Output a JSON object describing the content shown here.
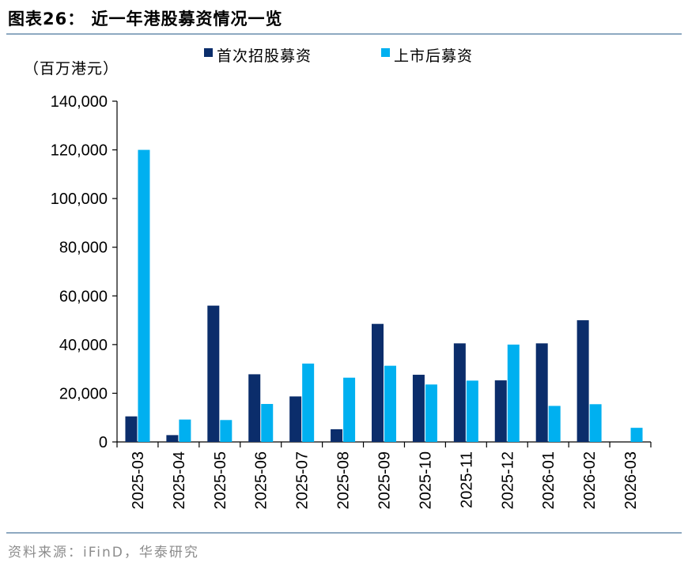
{
  "figure": {
    "title": "图表26： 近一年港股募资情况一览",
    "source": "资料来源：iFinD，华泰研究"
  },
  "chart_data": {
    "type": "bar",
    "unit_label": "（百万港元）",
    "categories": [
      "2025-03",
      "2025-04",
      "2025-05",
      "2025-06",
      "2025-07",
      "2025-08",
      "2025-09",
      "2025-10",
      "2025-11",
      "2025-12",
      "2026-01",
      "2026-02",
      "2026-03"
    ],
    "series": [
      {
        "name": "首次招股募资",
        "color": "#0b2d6b",
        "values": [
          10500,
          2800,
          56000,
          27800,
          18700,
          5200,
          48500,
          27600,
          40500,
          25300,
          40500,
          50000,
          0
        ]
      },
      {
        "name": "上市后募资",
        "color": "#00b0f0",
        "values": [
          120000,
          9200,
          9000,
          15600,
          32200,
          26400,
          31300,
          23600,
          25200,
          40000,
          14800,
          15500,
          5800
        ]
      }
    ],
    "ylim": [
      0,
      140000
    ],
    "yticks": [
      0,
      20000,
      40000,
      60000,
      80000,
      100000,
      120000,
      140000
    ],
    "ytick_labels": [
      "0",
      "20,000",
      "40,000",
      "60,000",
      "80,000",
      "100,000",
      "120,000",
      "140,000"
    ],
    "legend_position": "top",
    "grid": false
  }
}
